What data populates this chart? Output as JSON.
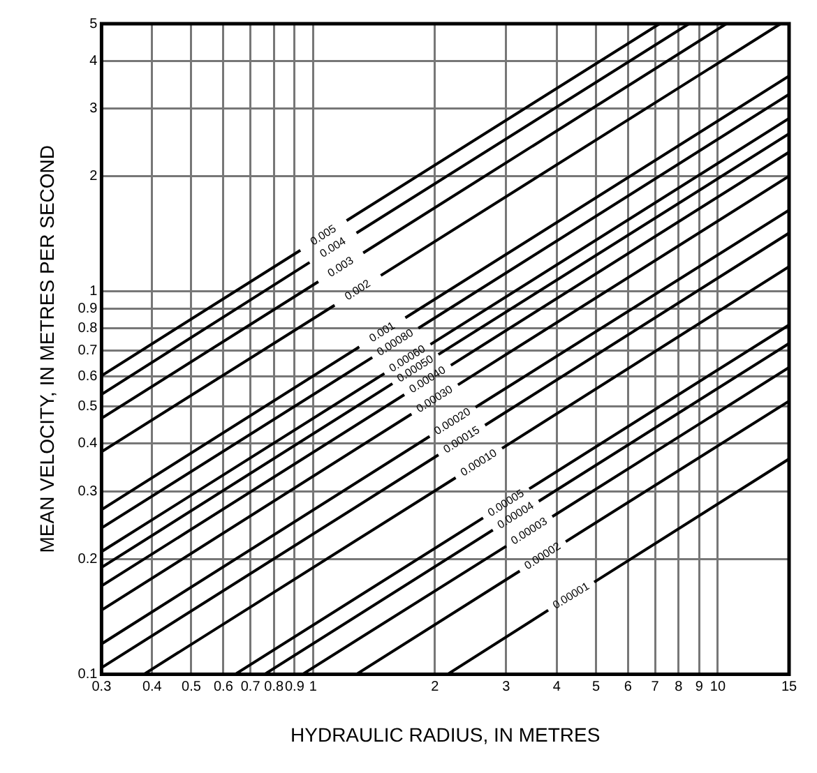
{
  "chart_data": {
    "type": "line",
    "xlabel": "HYDRAULIC RADIUS, IN METRES",
    "ylabel": "MEAN VELOCITY, IN METRES PER SECOND",
    "log": "xy",
    "grid": true,
    "legend": false,
    "marker": "none",
    "line_style": "solid",
    "xlim": [
      0.3,
      15
    ],
    "ylim": [
      0.1,
      5
    ],
    "xticks": [
      0.3,
      0.4,
      0.5,
      0.6,
      0.7,
      0.8,
      0.9,
      1,
      2,
      3,
      4,
      5,
      6,
      7,
      8,
      9,
      10,
      15
    ],
    "yticks": [
      0.1,
      0.2,
      0.3,
      0.4,
      0.5,
      0.6,
      0.7,
      0.8,
      0.9,
      1,
      2,
      3,
      4,
      5
    ],
    "series": [
      {
        "name": "0.005",
        "color": "#000000",
        "x": [
          0.3,
          0.93,
          1.06,
          1.21,
          7.18
        ],
        "values": [
          0.602,
          1.28,
          null,
          1.53,
          5
        ]
      },
      {
        "name": "0.004",
        "color": "#000000",
        "x": [
          0.3,
          0.98,
          1.12,
          1.28,
          8.49
        ],
        "values": [
          0.538,
          1.19,
          null,
          1.42,
          5
        ]
      },
      {
        "name": "0.003",
        "color": "#000000",
        "x": [
          0.3,
          1.03,
          1.17,
          1.33,
          10.5
        ],
        "values": [
          0.466,
          1.06,
          null,
          1.26,
          5
        ]
      },
      {
        "name": "0.002",
        "color": "#000000",
        "x": [
          0.3,
          1.13,
          1.29,
          1.47,
          14.3
        ],
        "values": [
          0.381,
          0.92,
          null,
          1.1,
          5
        ]
      },
      {
        "name": "0.001",
        "color": "#000000",
        "x": [
          0.3,
          1.3,
          1.48,
          1.69,
          15
        ],
        "values": [
          0.269,
          0.716,
          null,
          0.853,
          3.65
        ]
      },
      {
        "name": "0.00080",
        "color": "#000000",
        "x": [
          0.3,
          1.4,
          1.6,
          1.82,
          15
        ],
        "values": [
          0.241,
          0.672,
          null,
          0.801,
          3.27
        ]
      },
      {
        "name": "0.00060",
        "color": "#000000",
        "x": [
          0.3,
          1.5,
          1.71,
          1.95,
          15
        ],
        "values": [
          0.209,
          0.61,
          null,
          0.727,
          2.83
        ]
      },
      {
        "name": "0.00050",
        "color": "#000000",
        "x": [
          0.3,
          1.57,
          1.79,
          2.04,
          15
        ],
        "values": [
          0.19,
          0.574,
          null,
          0.684,
          2.58
        ]
      },
      {
        "name": "0.00040",
        "color": "#000000",
        "x": [
          0.3,
          1.68,
          1.92,
          2.19,
          15
        ],
        "values": [
          0.17,
          0.537,
          null,
          0.641,
          2.31
        ]
      },
      {
        "name": "0.00030",
        "color": "#000000",
        "x": [
          0.3,
          1.75,
          2,
          2.28,
          15
        ],
        "values": [
          0.147,
          0.478,
          null,
          0.57,
          2
        ]
      },
      {
        "name": "0.00020",
        "color": "#000000",
        "x": [
          0.3,
          1.94,
          2.21,
          2.52,
          15
        ],
        "values": [
          0.12,
          0.418,
          null,
          0.498,
          1.63
        ]
      },
      {
        "name": "0.00015",
        "color": "#000000",
        "x": [
          0.3,
          2.04,
          2.33,
          2.66,
          15
        ],
        "values": [
          0.104,
          0.374,
          null,
          0.447,
          1.42
        ]
      },
      {
        "name": "0.00010",
        "color": "#000000",
        "x": [
          0.382,
          2.25,
          2.57,
          2.93,
          15
        ],
        "values": [
          0.1,
          0.326,
          null,
          0.389,
          1.16
        ]
      },
      {
        "name": "0.00005",
        "color": "#000000",
        "x": [
          0.642,
          2.63,
          3,
          3.42,
          15
        ],
        "values": [
          0.1,
          0.256,
          null,
          0.305,
          0.817
        ]
      },
      {
        "name": "0.00004",
        "color": "#000000",
        "x": [
          0.759,
          2.78,
          3.17,
          3.61,
          15
        ],
        "values": [
          0.1,
          0.238,
          null,
          0.283,
          0.731
        ]
      },
      {
        "name": "0.00003",
        "color": "#000000",
        "x": [
          0.942,
          3,
          3.42,
          3.9,
          15
        ],
        "values": [
          0.1,
          0.216,
          null,
          0.258,
          0.633
        ]
      },
      {
        "name": "0.00002",
        "color": "#000000",
        "x": [
          1.28,
          3.24,
          3.69,
          4.21,
          15
        ],
        "values": [
          0.1,
          0.186,
          null,
          0.222,
          0.517
        ]
      },
      {
        "name": "0.00001",
        "color": "#000000",
        "x": [
          2.15,
          3.81,
          4.34,
          4.95,
          15
        ],
        "values": [
          0.1,
          0.147,
          null,
          0.174,
          0.365
        ]
      }
    ]
  }
}
